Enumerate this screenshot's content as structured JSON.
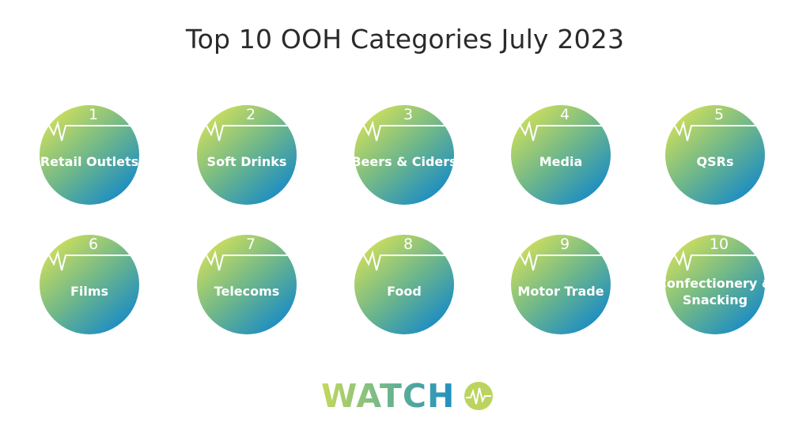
{
  "title": "Top 10 OOH Categories July 2023",
  "categories": [
    {
      "rank": "1",
      "label": "Retail Outlets"
    },
    {
      "rank": "2",
      "label": "Soft Drinks"
    },
    {
      "rank": "3",
      "label": "Beers & Ciders"
    },
    {
      "rank": "4",
      "label": "Media"
    },
    {
      "rank": "5",
      "label": "QSRs"
    },
    {
      "rank": "6",
      "label": "Films"
    },
    {
      "rank": "7",
      "label": "Telecoms"
    },
    {
      "rank": "8",
      "label": "Food"
    },
    {
      "rank": "9",
      "label": "Motor Trade"
    },
    {
      "rank": "10",
      "label": "Confectionery & Snacking"
    }
  ],
  "logo": {
    "text": "WATCH",
    "icon": "pulse-circle-icon"
  },
  "colors": {
    "gradient_start": "#cadd5e",
    "gradient_end": "#1b8cc4",
    "title": "#2a2a2a"
  }
}
